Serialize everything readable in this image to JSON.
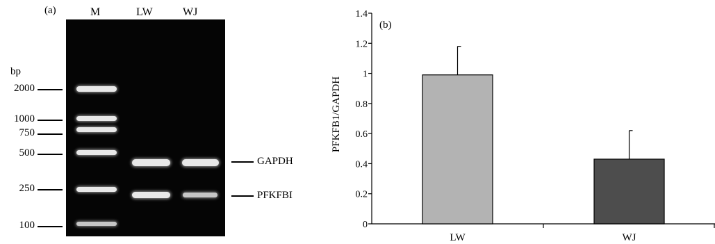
{
  "panel_a": {
    "label": "(a)",
    "lanes": [
      "M",
      "LW",
      "WJ"
    ],
    "unit_label": "bp",
    "markers": [
      "2000",
      "1000",
      "750",
      "500",
      "250",
      "100"
    ],
    "band_labels": [
      "GAPDH",
      "PFKFBI"
    ]
  },
  "panel_b": {
    "label": "(b)"
  },
  "chart_data": {
    "type": "bar",
    "title": "",
    "xlabel": "",
    "ylabel": "PFKFB1/GAPDH",
    "categories": [
      "LW",
      "WJ"
    ],
    "values": [
      0.99,
      0.43
    ],
    "error_bars": [
      0.19,
      0.19
    ],
    "colors": [
      "#b3b3b3",
      "#4d4d4d"
    ],
    "ylim": [
      0,
      1.4
    ],
    "yticks": [
      0,
      0.2,
      0.4,
      0.6,
      0.8,
      1,
      1.2,
      1.4
    ],
    "ytick_labels": [
      "0",
      "0.2",
      "0.4",
      "0.6",
      "0.8",
      "1",
      "1.2",
      "1.4"
    ],
    "grid": false,
    "legend": "none"
  }
}
